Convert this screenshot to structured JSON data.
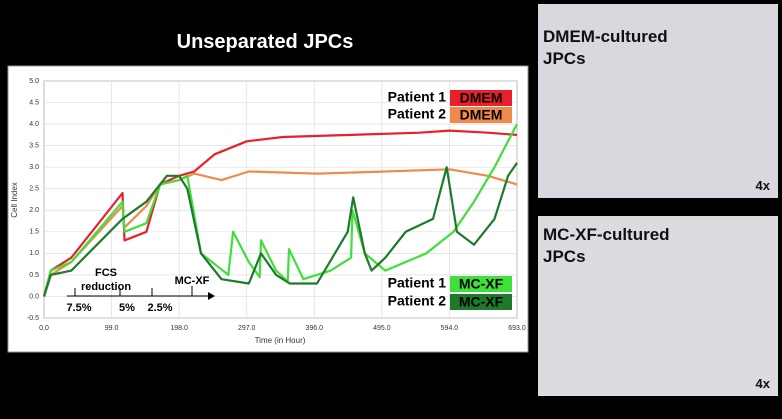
{
  "chart_data": {
    "type": "line",
    "title": "Unseparated JPCs",
    "x_label": "Time (in Hour)",
    "y_label": "Cell Index",
    "xlim": [
      0,
      693
    ],
    "ylim": [
      -0.5,
      5.0
    ],
    "xticks": [
      {
        "value": 0,
        "label": "0.0"
      },
      {
        "value": 99,
        "label": "99.0"
      },
      {
        "value": 198,
        "label": "198.0"
      },
      {
        "value": 297,
        "label": "297.0"
      },
      {
        "value": 396,
        "label": "396.0"
      },
      {
        "value": 495,
        "label": "495.0"
      },
      {
        "value": 594,
        "label": "594.0"
      },
      {
        "value": 693,
        "label": "693.0"
      }
    ],
    "yticks": [
      {
        "value": -0.5,
        "label": "-0.5"
      },
      {
        "value": 0,
        "label": "0.0"
      },
      {
        "value": 0.5,
        "label": "0.5"
      },
      {
        "value": 1,
        "label": "1.0"
      },
      {
        "value": 1.5,
        "label": "1.5"
      },
      {
        "value": 2,
        "label": "2.0"
      },
      {
        "value": 2.5,
        "label": "2.5"
      },
      {
        "value": 3,
        "label": "3.0"
      },
      {
        "value": 3.5,
        "label": "3.5"
      },
      {
        "value": 4,
        "label": "4.0"
      },
      {
        "value": 4.5,
        "label": "4.5"
      },
      {
        "value": 5,
        "label": "5.0"
      }
    ],
    "grid": true,
    "series": [
      {
        "name": "Patient 1",
        "medium": "DMEM",
        "color": "#e8202a",
        "x": [
          0,
          10,
          40,
          115,
          118,
          150,
          170,
          198,
          220,
          250,
          297,
          350,
          450,
          550,
          594,
          650,
          693
        ],
        "values": [
          0,
          0.6,
          0.9,
          2.4,
          1.3,
          1.5,
          2.6,
          2.8,
          2.9,
          3.3,
          3.6,
          3.7,
          3.75,
          3.8,
          3.85,
          3.8,
          3.75
        ]
      },
      {
        "name": "Patient 2",
        "medium": "DMEM",
        "color": "#f08a4b",
        "x": [
          0,
          10,
          40,
          115,
          118,
          150,
          170,
          198,
          220,
          260,
          300,
          400,
          500,
          594,
          650,
          693
        ],
        "values": [
          0,
          0.5,
          0.8,
          2.1,
          1.6,
          2.1,
          2.6,
          2.7,
          2.85,
          2.7,
          2.9,
          2.85,
          2.9,
          2.95,
          2.8,
          2.6
        ]
      },
      {
        "name": "Patient 1",
        "medium": "MC-XF",
        "color": "#3fe03a",
        "x": [
          0,
          10,
          40,
          115,
          118,
          150,
          170,
          198,
          210,
          230,
          270,
          277,
          300,
          316,
          318,
          340,
          357,
          359,
          380,
          420,
          450,
          452,
          470,
          500,
          530,
          560,
          600,
          630,
          660,
          693
        ],
        "values": [
          0,
          0.6,
          0.8,
          2.2,
          1.5,
          1.7,
          2.6,
          2.7,
          2.8,
          1.0,
          0.5,
          1.5,
          0.8,
          0.45,
          1.3,
          0.6,
          0.35,
          1.1,
          0.4,
          0.6,
          0.9,
          2.0,
          1.0,
          0.6,
          0.8,
          1.0,
          1.5,
          2.2,
          3.0,
          4.0
        ]
      },
      {
        "name": "Patient 2",
        "medium": "MC-XF",
        "color": "#1e7a2a",
        "x": [
          0,
          10,
          40,
          115,
          150,
          180,
          198,
          210,
          230,
          260,
          300,
          318,
          340,
          360,
          400,
          445,
          453,
          470,
          480,
          500,
          530,
          570,
          590,
          605,
          630,
          660,
          680,
          693
        ],
        "values": [
          0,
          0.5,
          0.6,
          1.8,
          2.2,
          2.8,
          2.8,
          2.5,
          1.0,
          0.4,
          0.3,
          1.0,
          0.5,
          0.3,
          0.3,
          1.5,
          2.3,
          1.0,
          0.6,
          0.9,
          1.5,
          1.8,
          3.0,
          1.5,
          1.2,
          1.8,
          2.8,
          3.1
        ]
      }
    ],
    "annotations": {
      "fcs": "FCS",
      "reduction": "reduction",
      "p75": "7.5%",
      "p5": "5%",
      "p25": "2.5%",
      "mcxf": "MC-XF"
    }
  },
  "images": [
    {
      "line1": "DMEM-cultured",
      "line2": "JPCs",
      "magnification": "4x"
    },
    {
      "line1": "MC-XF-cultured",
      "line2": "JPCs",
      "magnification": "4x"
    }
  ]
}
